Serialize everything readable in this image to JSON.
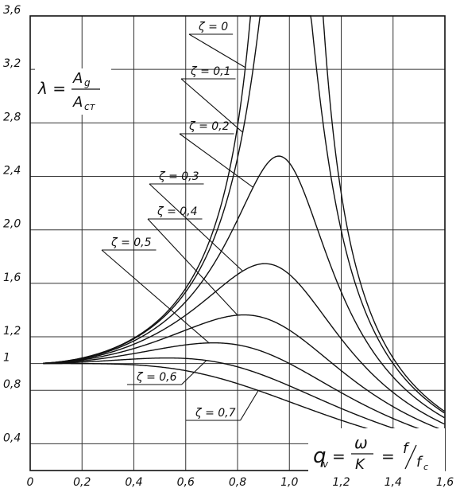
{
  "chart_data": {
    "type": "line",
    "xlim": [
      0,
      1.6
    ],
    "ylim": [
      0.2,
      3.6
    ],
    "x_ticks": [
      "0",
      "0,2",
      "0,4",
      "0,6",
      "0,8",
      "1,0",
      "1,2",
      "1,4",
      "1,6"
    ],
    "y_ticks": [
      {
        "value": 3.6,
        "label": "3,6"
      },
      {
        "value": 3.2,
        "label": "3,2"
      },
      {
        "value": 2.8,
        "label": "2,8"
      },
      {
        "value": 2.4,
        "label": "2,4"
      },
      {
        "value": 2.0,
        "label": "2,0"
      },
      {
        "value": 1.6,
        "label": "1,6"
      },
      {
        "value": 1.2,
        "label": "1,2"
      },
      {
        "value": 1.0,
        "label": "1"
      },
      {
        "value": 0.8,
        "label": "0,8"
      },
      {
        "value": 0.4,
        "label": "0,4"
      }
    ],
    "grid": true,
    "formula_y": {
      "lhs": "λ =",
      "num": "A",
      "num_sub": "g",
      "den": "A",
      "den_sub": "ст"
    },
    "formula_x": {
      "lhs": "q",
      "lhs_sub": "v",
      "eq": "=",
      "num": "ω",
      "den": "K",
      "eq2": "=",
      "f": "f",
      "fc": "f",
      "fc_sub": "c"
    },
    "series": [
      {
        "zeta": 0.0,
        "name": "ζ = 0"
      },
      {
        "zeta": 0.1,
        "name": "ζ = 0,1"
      },
      {
        "zeta": 0.2,
        "name": "ζ = 0,2"
      },
      {
        "zeta": 0.3,
        "name": "ζ = 0,3"
      },
      {
        "zeta": 0.4,
        "name": "ζ = 0,4"
      },
      {
        "zeta": 0.5,
        "name": "ζ = 0,5"
      },
      {
        "zeta": 0.6,
        "name": "ζ = 0,6"
      },
      {
        "zeta": 0.7,
        "name": "ζ = 0,7"
      }
    ],
    "annotations": [
      {
        "name": "ζ = 0",
        "points_to": {
          "series": 0,
          "x": 0.83
        }
      },
      {
        "name": "ζ = 0,1",
        "points_to": {
          "series": 1,
          "x": 0.82
        }
      },
      {
        "name": "ζ = 0,2",
        "points_to": {
          "series": 2,
          "x": 0.86
        }
      },
      {
        "name": "ζ = 0,3",
        "points_to": {
          "series": 3,
          "x": 0.82
        }
      },
      {
        "name": "ζ = 0,4",
        "points_to": {
          "series": 4,
          "x": 0.8
        }
      },
      {
        "name": "ζ = 0,5",
        "points_to": {
          "series": 5,
          "x": 0.69
        }
      },
      {
        "name": "ζ = 0,6",
        "points_to": {
          "series": 6,
          "x": 0.68
        }
      },
      {
        "name": "ζ = 0,7",
        "points_to": {
          "series": 7,
          "x": 0.88
        }
      }
    ]
  }
}
